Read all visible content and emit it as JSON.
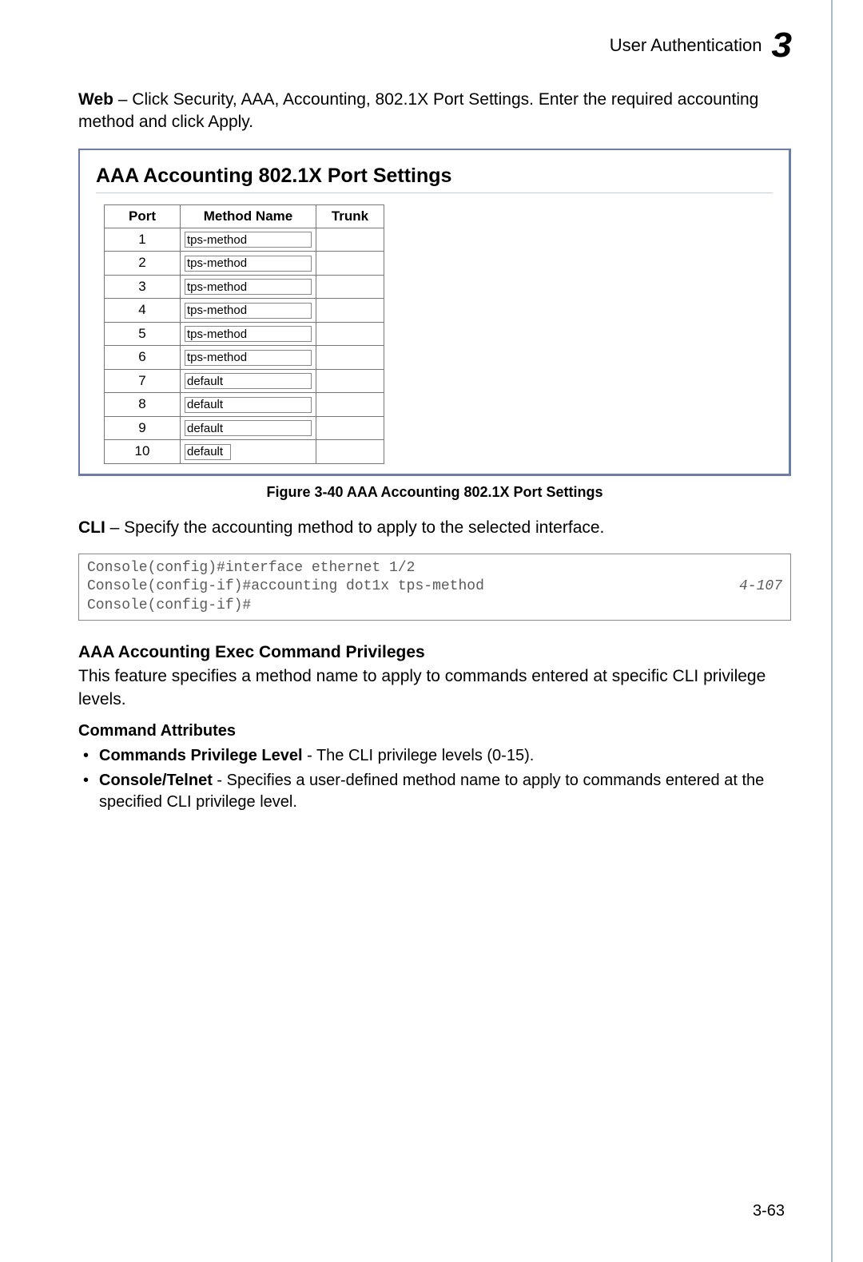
{
  "header": {
    "title": "User Authentication",
    "chapter": "3"
  },
  "intro": {
    "web_label": "Web",
    "web_text": " – Click Security, AAA, Accounting, 802.1X Port Settings. Enter the required accounting method and click Apply."
  },
  "panel": {
    "title": "AAA Accounting 802.1X Port Settings",
    "columns": {
      "port": "Port",
      "method": "Method Name",
      "trunk": "Trunk"
    },
    "rows": [
      {
        "port": "1",
        "method": "tps-method",
        "trunk": "",
        "short": false
      },
      {
        "port": "2",
        "method": "tps-method",
        "trunk": "",
        "short": false
      },
      {
        "port": "3",
        "method": "tps-method",
        "trunk": "",
        "short": false
      },
      {
        "port": "4",
        "method": "tps-method",
        "trunk": "",
        "short": false
      },
      {
        "port": "5",
        "method": "tps-method",
        "trunk": "",
        "short": false
      },
      {
        "port": "6",
        "method": "tps-method",
        "trunk": "",
        "short": false
      },
      {
        "port": "7",
        "method": "default",
        "trunk": "",
        "short": false
      },
      {
        "port": "8",
        "method": "default",
        "trunk": "",
        "short": false
      },
      {
        "port": "9",
        "method": "default",
        "trunk": "",
        "short": false
      },
      {
        "port": "10",
        "method": "default",
        "trunk": "",
        "short": true
      }
    ]
  },
  "figure_caption": "Figure 3-40  AAA Accounting 802.1X Port Settings",
  "cli": {
    "label": "CLI",
    "text": " – Specify the accounting method to apply to the selected interface.",
    "lines": [
      {
        "cmd": "Console(config)#interface ethernet 1/2",
        "ref": ""
      },
      {
        "cmd": "Console(config-if)#accounting dot1x tps-method",
        "ref": "4-107"
      },
      {
        "cmd": "Console(config-if)#",
        "ref": ""
      }
    ]
  },
  "section": {
    "heading": "AAA Accounting Exec Command Privileges",
    "desc": "This feature specifies a method name to apply to commands entered at specific CLI privilege levels.",
    "sub": "Command Attributes",
    "bullets": [
      {
        "strong": "Commands Privilege Level",
        "rest": " - The CLI privilege levels (0-15)."
      },
      {
        "strong": "Console/Telnet",
        "rest": " - Specifies a user-defined method name to apply to commands entered at the specified CLI privilege level."
      }
    ]
  },
  "page_number": "3-63"
}
